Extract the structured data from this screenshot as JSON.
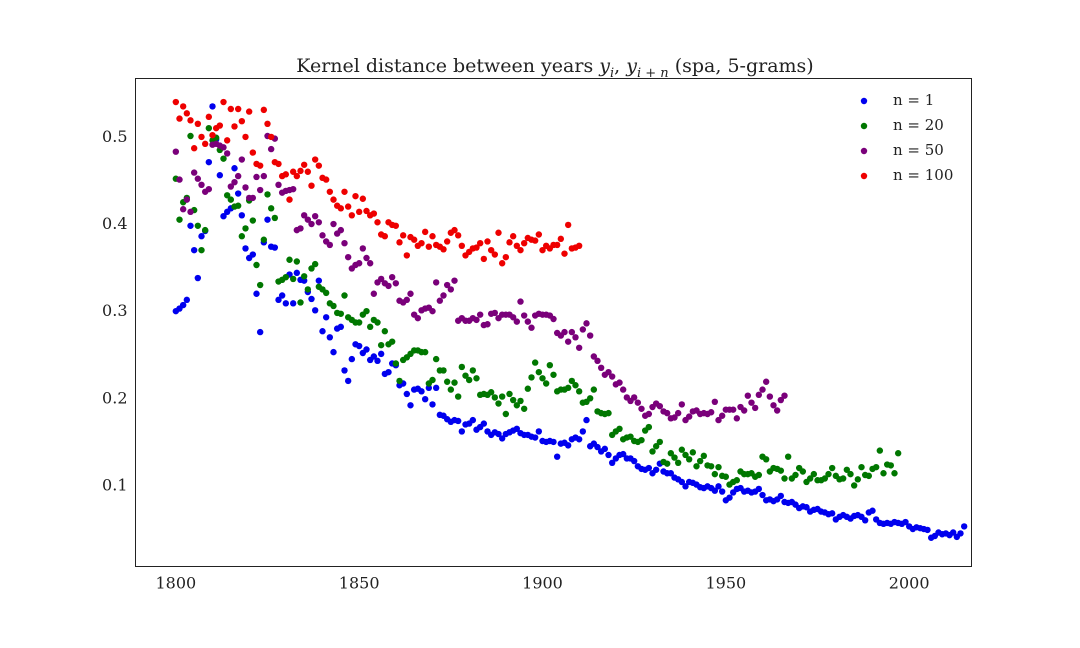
{
  "chart_data": {
    "type": "scatter",
    "title": "Kernel distance between years y_i, y_{i+n} (spa, 5-grams)",
    "title_parts": {
      "prefix": "Kernel distance between years ",
      "y1": "y",
      "sub1": "i",
      "sep": ", ",
      "y2": "y",
      "sub2": "i + n",
      "suffix": " (spa, 5-grams)"
    },
    "xlabel": "",
    "ylabel": "",
    "xlim": [
      1789,
      2017
    ],
    "ylim": [
      0.007,
      0.567
    ],
    "xticks": [
      1800,
      1850,
      1900,
      1950,
      2000
    ],
    "xtick_labels": [
      "1800",
      "1850",
      "1900",
      "1950",
      "2000"
    ],
    "yticks": [
      0.1,
      0.2,
      0.3,
      0.4,
      0.5
    ],
    "ytick_labels": [
      "0.1",
      "0.2",
      "0.3",
      "0.4",
      "0.5"
    ],
    "grid": false,
    "legend_position": "top-right",
    "series": [
      {
        "name": "n = 1",
        "color": "#0000ee",
        "x_start": 1800,
        "y": [
          0.3,
          0.303,
          0.307,
          0.313,
          0.398,
          0.37,
          0.338,
          0.386,
          0.392,
          0.471,
          0.535,
          0.497,
          0.456,
          0.409,
          0.414,
          0.418,
          0.464,
          0.435,
          0.41,
          0.372,
          0.361,
          0.365,
          0.32,
          0.276,
          0.379,
          0.405,
          0.374,
          0.373,
          0.313,
          0.318,
          0.309,
          0.342,
          0.309,
          0.344,
          0.336,
          0.335,
          0.322,
          0.314,
          0.301,
          0.335,
          0.277,
          0.293,
          0.27,
          0.253,
          0.28,
          0.282,
          0.232,
          0.22,
          0.245,
          0.262,
          0.26,
          0.252,
          0.256,
          0.244,
          0.248,
          0.243,
          0.251,
          0.228,
          0.23,
          0.24,
          0.238,
          0.215,
          0.217,
          0.205,
          0.192,
          0.21,
          0.211,
          0.208,
          0.199,
          0.212,
          0.193,
          0.212,
          0.181,
          0.18,
          0.176,
          0.173,
          0.175,
          0.174,
          0.162,
          0.17,
          0.171,
          0.175,
          0.164,
          0.167,
          0.171,
          0.162,
          0.158,
          0.161,
          0.159,
          0.154,
          0.159,
          0.161,
          0.163,
          0.165,
          0.16,
          0.158,
          0.158,
          0.156,
          0.155,
          0.162,
          0.151,
          0.15,
          0.151,
          0.15,
          0.133,
          0.148,
          0.149,
          0.146,
          0.153,
          0.155,
          0.153,
          0.162,
          0.175,
          0.145,
          0.148,
          0.144,
          0.139,
          0.142,
          0.135,
          0.126,
          0.131,
          0.135,
          0.136,
          0.131,
          0.131,
          0.128,
          0.122,
          0.119,
          0.118,
          0.12,
          0.114,
          0.118,
          0.125,
          0.116,
          0.114,
          0.114,
          0.109,
          0.107,
          0.104,
          0.099,
          0.104,
          0.103,
          0.101,
          0.098,
          0.097,
          0.099,
          0.097,
          0.094,
          0.099,
          0.093,
          0.083,
          0.086,
          0.092,
          0.096,
          0.097,
          0.093,
          0.094,
          0.092,
          0.093,
          0.096,
          0.089,
          0.083,
          0.084,
          0.082,
          0.084,
          0.088,
          0.081,
          0.08,
          0.081,
          0.078,
          0.074,
          0.076,
          0.075,
          0.07,
          0.072,
          0.073,
          0.07,
          0.069,
          0.067,
          0.068,
          0.061,
          0.064,
          0.066,
          0.064,
          0.062,
          0.065,
          0.066,
          0.064,
          0.06,
          0.069,
          0.071,
          0.061,
          0.057,
          0.056,
          0.057,
          0.056,
          0.058,
          0.057,
          0.056,
          0.058,
          0.053,
          0.05,
          0.052,
          0.051,
          0.05,
          0.049,
          0.04,
          0.042,
          0.046,
          0.044,
          0.045,
          0.043,
          0.046,
          0.041,
          0.045,
          0.053
        ]
      },
      {
        "name": "n = 20",
        "color": "#007700",
        "x_start": 1800,
        "y": [
          0.452,
          0.405,
          0.425,
          0.43,
          0.501,
          0.416,
          0.398,
          0.37,
          0.393,
          0.51,
          0.496,
          0.499,
          0.485,
          0.475,
          0.433,
          0.428,
          0.42,
          0.421,
          0.386,
          0.395,
          0.427,
          0.404,
          0.353,
          0.33,
          0.382,
          0.434,
          0.418,
          0.407,
          0.334,
          0.336,
          0.339,
          0.359,
          0.337,
          0.357,
          0.31,
          0.34,
          0.325,
          0.349,
          0.354,
          0.328,
          0.325,
          0.321,
          0.309,
          0.306,
          0.298,
          0.297,
          0.318,
          0.293,
          0.29,
          0.287,
          0.287,
          0.296,
          0.3,
          0.282,
          0.29,
          0.287,
          0.261,
          0.277,
          0.262,
          0.265,
          0.24,
          0.22,
          0.244,
          0.247,
          0.251,
          0.255,
          0.255,
          0.253,
          0.253,
          0.217,
          0.221,
          0.245,
          0.232,
          0.232,
          0.219,
          0.21,
          0.218,
          0.202,
          0.236,
          0.226,
          0.221,
          0.232,
          0.223,
          0.204,
          0.205,
          0.204,
          0.207,
          0.201,
          0.194,
          0.202,
          0.182,
          0.205,
          0.198,
          0.192,
          0.197,
          0.188,
          0.211,
          0.224,
          0.241,
          0.23,
          0.223,
          0.217,
          0.238,
          0.227,
          0.208,
          0.21,
          0.21,
          0.212,
          0.22,
          0.215,
          0.208,
          0.195,
          0.196,
          0.2,
          0.21,
          0.185,
          0.183,
          0.182,
          0.183,
          0.158,
          0.162,
          0.165,
          0.153,
          0.155,
          0.156,
          0.151,
          0.15,
          0.152,
          0.163,
          0.167,
          0.139,
          0.145,
          0.15,
          0.127,
          0.125,
          0.137,
          0.132,
          0.126,
          0.141,
          0.135,
          0.13,
          0.138,
          0.122,
          0.128,
          0.134,
          0.123,
          0.122,
          0.113,
          0.121,
          0.111,
          0.11,
          0.101,
          0.104,
          0.106,
          0.116,
          0.113,
          0.113,
          0.114,
          0.11,
          0.112,
          0.133,
          0.13,
          0.116,
          0.12,
          0.119,
          0.117,
          0.108,
          0.133,
          0.108,
          0.112,
          0.12,
          0.116,
          0.104,
          0.108,
          0.113,
          0.106,
          0.106,
          0.108,
          0.113,
          0.12,
          0.111,
          0.107,
          0.108,
          0.118,
          0.113,
          0.1,
          0.107,
          0.121,
          0.112,
          0.111,
          0.119,
          0.121,
          0.14,
          0.114,
          0.124,
          0.123,
          0.114,
          0.137
        ]
      },
      {
        "name": "n = 50",
        "color": "#7a007a",
        "x_start": 1800,
        "y": [
          0.483,
          0.451,
          0.417,
          0.428,
          0.414,
          0.459,
          0.452,
          0.445,
          0.437,
          0.44,
          0.491,
          0.492,
          0.49,
          0.488,
          0.481,
          0.443,
          0.448,
          0.455,
          0.474,
          0.442,
          0.43,
          0.43,
          0.454,
          0.439,
          0.455,
          0.501,
          0.486,
          0.498,
          0.445,
          0.436,
          0.438,
          0.439,
          0.44,
          0.393,
          0.395,
          0.41,
          0.405,
          0.4,
          0.409,
          0.402,
          0.387,
          0.38,
          0.376,
          0.4,
          0.389,
          0.393,
          0.378,
          0.362,
          0.349,
          0.353,
          0.355,
          0.372,
          0.361,
          0.355,
          0.32,
          0.333,
          0.337,
          0.332,
          0.329,
          0.339,
          0.332,
          0.312,
          0.31,
          0.313,
          0.32,
          0.296,
          0.292,
          0.301,
          0.303,
          0.304,
          0.3,
          0.333,
          0.312,
          0.318,
          0.33,
          0.325,
          0.335,
          0.289,
          0.292,
          0.289,
          0.289,
          0.292,
          0.29,
          0.296,
          0.284,
          0.285,
          0.297,
          0.298,
          0.292,
          0.296,
          0.296,
          0.296,
          0.293,
          0.288,
          0.311,
          0.295,
          0.288,
          0.281,
          0.295,
          0.297,
          0.296,
          0.296,
          0.295,
          0.291,
          0.275,
          0.272,
          0.276,
          0.265,
          0.276,
          0.27,
          0.258,
          0.279,
          0.286,
          0.272,
          0.248,
          0.243,
          0.235,
          0.227,
          0.23,
          0.225,
          0.216,
          0.218,
          0.21,
          0.201,
          0.197,
          0.201,
          0.195,
          0.188,
          0.18,
          0.182,
          0.19,
          0.194,
          0.191,
          0.185,
          0.183,
          0.177,
          0.178,
          0.183,
          0.193,
          0.175,
          0.179,
          0.185,
          0.186,
          0.182,
          0.183,
          0.182,
          0.184,
          0.196,
          0.175,
          0.18,
          0.187,
          0.187,
          0.187,
          0.177,
          0.19,
          0.186,
          0.203,
          0.195,
          0.189,
          0.204,
          0.21,
          0.219,
          0.202,
          0.192,
          0.186,
          0.198,
          0.203
        ]
      },
      {
        "name": "n = 100",
        "color": "#ee0000",
        "x_start": 1800,
        "y": [
          0.54,
          0.521,
          0.535,
          0.527,
          0.519,
          0.487,
          0.515,
          0.5,
          0.492,
          0.523,
          0.502,
          0.51,
          0.513,
          0.54,
          0.496,
          0.532,
          0.512,
          0.532,
          0.518,
          0.5,
          0.529,
          0.482,
          0.469,
          0.467,
          0.531,
          0.515,
          0.5,
          0.471,
          0.469,
          0.455,
          0.457,
          0.428,
          0.46,
          0.455,
          0.461,
          0.468,
          0.46,
          0.444,
          0.474,
          0.467,
          0.453,
          0.451,
          0.437,
          0.428,
          0.421,
          0.418,
          0.437,
          0.42,
          0.41,
          0.432,
          0.414,
          0.429,
          0.415,
          0.41,
          0.412,
          0.402,
          0.388,
          0.386,
          0.402,
          0.399,
          0.398,
          0.379,
          0.387,
          0.364,
          0.385,
          0.382,
          0.375,
          0.378,
          0.391,
          0.374,
          0.386,
          0.376,
          0.374,
          0.371,
          0.38,
          0.39,
          0.393,
          0.387,
          0.375,
          0.364,
          0.368,
          0.372,
          0.373,
          0.378,
          0.36,
          0.38,
          0.37,
          0.365,
          0.39,
          0.355,
          0.362,
          0.379,
          0.386,
          0.375,
          0.37,
          0.378,
          0.384,
          0.382,
          0.381,
          0.388,
          0.37,
          0.375,
          0.372,
          0.376,
          0.376,
          0.383,
          0.366,
          0.399,
          0.372,
          0.373,
          0.375
        ]
      }
    ]
  }
}
